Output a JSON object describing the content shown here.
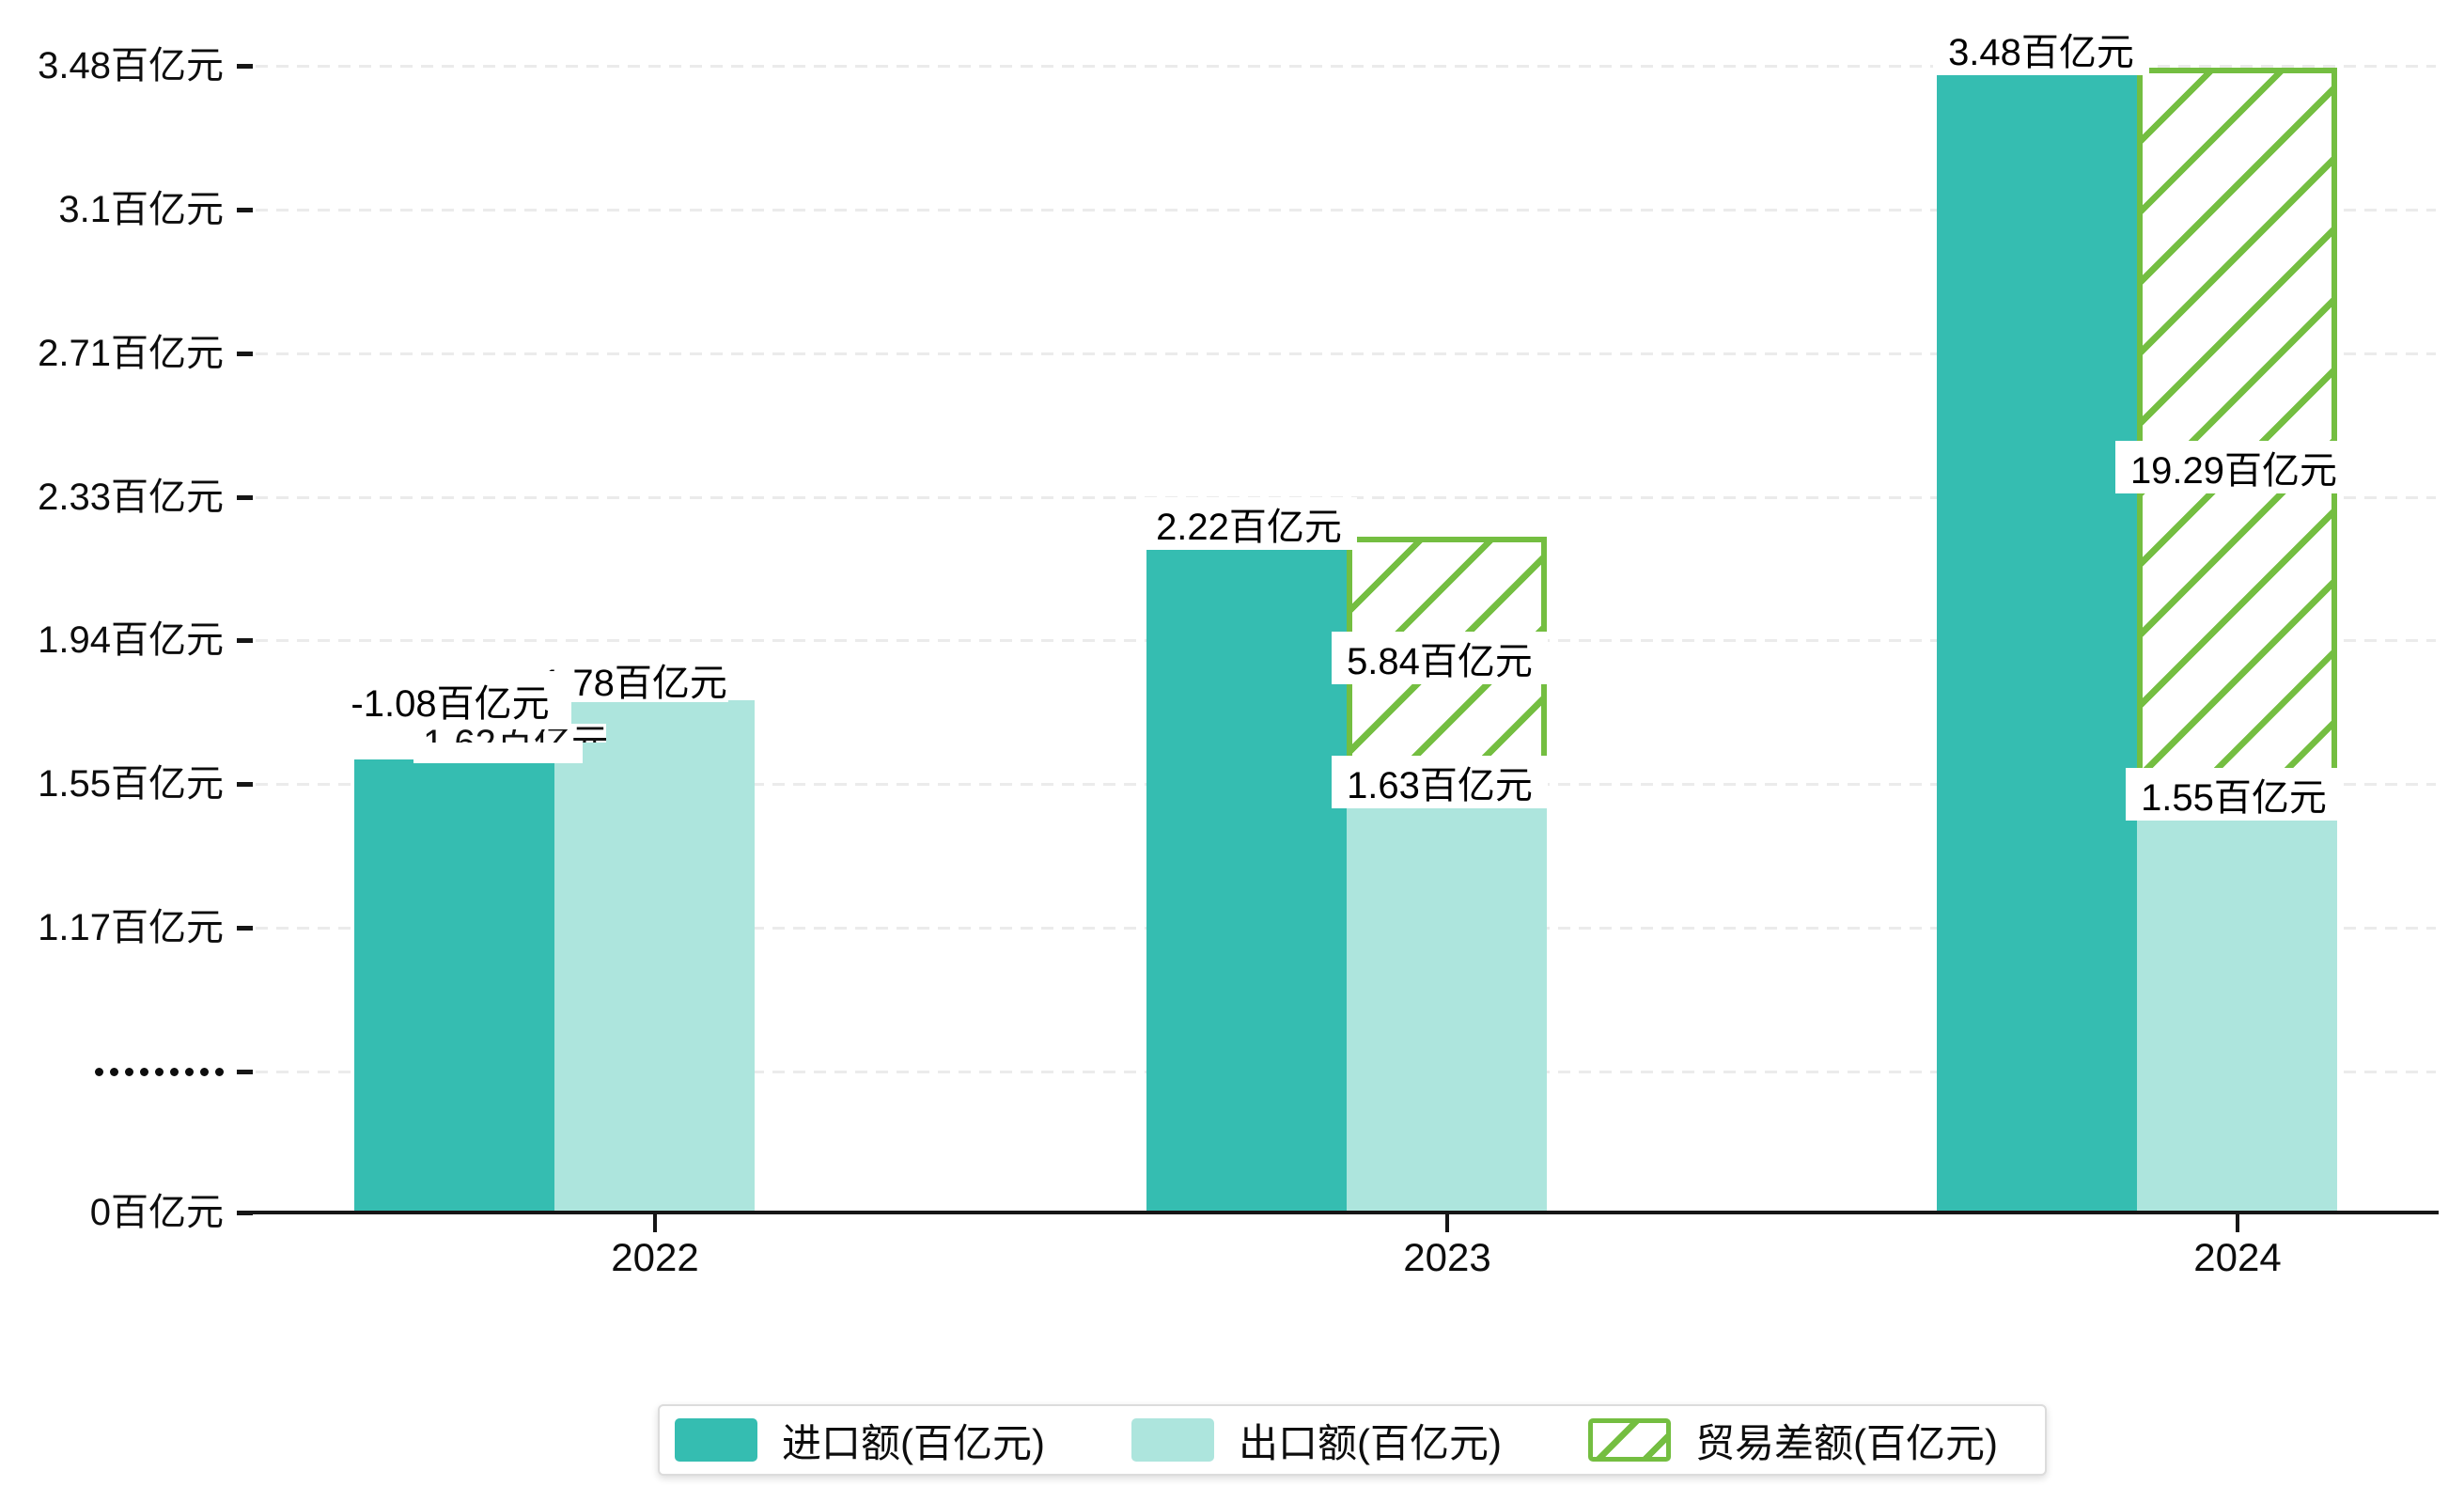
{
  "chart_data": {
    "type": "bar",
    "categories": [
      "2022",
      "2023",
      "2024"
    ],
    "series": [
      {
        "name": "进口额(百亿元)",
        "style": "solid",
        "color": "#35BDB1",
        "values": [
          1.62,
          2.22,
          3.48
        ],
        "labels": [
          "1.62百亿元",
          "2.22百亿元",
          "3.48百亿元"
        ]
      },
      {
        "name": "出口额(百亿元)",
        "style": "solid",
        "color": "#ADE5DD",
        "values": [
          1.78,
          1.63,
          1.55
        ],
        "labels": [
          "1.78百亿元",
          "1.63百亿元",
          "1.55百亿元"
        ]
      },
      {
        "name": "贸易差额(百亿元)",
        "style": "hatch",
        "color": "#74BE41",
        "values": [
          -1.08,
          5.84,
          19.29
        ],
        "labels": [
          "-1.08百亿元",
          "5.84百亿元",
          "19.29百亿元"
        ]
      }
    ],
    "ylabel_unit": "百亿元",
    "y_axis": {
      "broken_axis": true,
      "ticks": [
        {
          "label": "3.48百亿元",
          "value": 3.48
        },
        {
          "label": "3.1百亿元",
          "value": 3.1
        },
        {
          "label": "2.71百亿元",
          "value": 2.71
        },
        {
          "label": "2.33百亿元",
          "value": 2.33
        },
        {
          "label": "1.94百亿元",
          "value": 1.94
        },
        {
          "label": "1.55百亿元",
          "value": 1.55
        },
        {
          "label": "1.17百亿元",
          "value": 1.17
        },
        {
          "label": ".........",
          "value": 0.78,
          "dots": true
        },
        {
          "label": "0百亿元",
          "value": 0
        }
      ]
    },
    "legend": {
      "position": "bottom",
      "items": [
        "进口额(百亿元)",
        "出口额(百亿元)",
        "贸易差额(百亿元)"
      ]
    },
    "grid": true
  }
}
